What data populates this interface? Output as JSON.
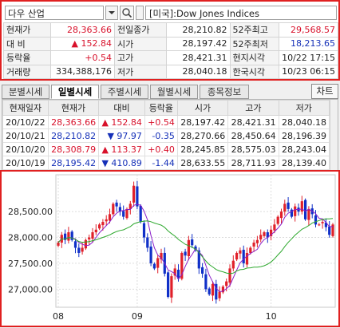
{
  "header": {
    "symbol_name": "다우 산업",
    "index_name": "[미국]:Dow Jones Indices"
  },
  "quote": {
    "rows": [
      [
        {
          "t": "현재가",
          "c": "lbl"
        },
        {
          "t": "28,363.66",
          "c": "num red"
        },
        {
          "t": "전일종가",
          "c": "lbl"
        },
        {
          "t": "28,210.82",
          "c": "num"
        },
        {
          "t": "52주최고",
          "c": "lbl"
        },
        {
          "t": "29,568.57",
          "c": "num red"
        }
      ],
      [
        {
          "t": "대 비",
          "c": "lbl"
        },
        {
          "t": "▲ 152.84",
          "c": "num red"
        },
        {
          "t": "시가",
          "c": "lbl"
        },
        {
          "t": "28,197.42",
          "c": "num"
        },
        {
          "t": "52주최저",
          "c": "lbl"
        },
        {
          "t": "18,213.65",
          "c": "num blue"
        }
      ],
      [
        {
          "t": "등락율",
          "c": "lbl"
        },
        {
          "t": "+0.54",
          "c": "num red"
        },
        {
          "t": "고가",
          "c": "lbl"
        },
        {
          "t": "28,421.31",
          "c": "num"
        },
        {
          "t": "현지시각",
          "c": "lbl"
        },
        {
          "t": "10/22 17:15",
          "c": "num"
        }
      ],
      [
        {
          "t": "거래량",
          "c": "lbl"
        },
        {
          "t": "334,388,176",
          "c": "num"
        },
        {
          "t": "저가",
          "c": "lbl"
        },
        {
          "t": "28,040.18",
          "c": "num"
        },
        {
          "t": "한국시각",
          "c": "lbl"
        },
        {
          "t": "10/23 06:15",
          "c": "num"
        }
      ]
    ]
  },
  "tabs": [
    "분별시세",
    "일별시세",
    "주별시세",
    "월별시세",
    "종목정보"
  ],
  "chart_button": "차트",
  "daily": {
    "headers": [
      "현재일자",
      "현재가",
      "대비",
      "등락율",
      "시가",
      "고가",
      "저가"
    ],
    "rows": [
      {
        "date": "20/10/22",
        "price": "28,363.66",
        "change": "▲ 152.84",
        "rate": "+0.54",
        "open": "28,197.42",
        "high": "28,421.31",
        "low": "28,040.18",
        "dir": "up"
      },
      {
        "date": "20/10/21",
        "price": "28,210.82",
        "change": "▼ 97.97",
        "rate": "-0.35",
        "open": "28,270.66",
        "high": "28,450.64",
        "low": "28,196.39",
        "dir": "down"
      },
      {
        "date": "20/10/20",
        "price": "28,308.79",
        "change": "▲ 113.37",
        "rate": "+0.40",
        "open": "28,245.85",
        "high": "28,575.03",
        "low": "28,243.04",
        "dir": "up"
      },
      {
        "date": "20/10/19",
        "price": "28,195.42",
        "change": "▼ 410.89",
        "rate": "-1.44",
        "open": "28,633.55",
        "high": "28,711.93",
        "low": "28,139.40",
        "dir": "down"
      }
    ]
  },
  "chart_data": {
    "type": "candlestick",
    "y_ticks": [
      "28,500.00",
      "28,000.00",
      "27,500.00",
      "27,000.00"
    ],
    "y_tick_values": [
      28500,
      28000,
      27500,
      27000
    ],
    "ylim": [
      26650,
      29150
    ],
    "x_ticks": [
      {
        "label": "08",
        "index": 0
      },
      {
        "label": "09",
        "index": 23
      },
      {
        "label": "10",
        "index": 62
      }
    ],
    "closes": [
      27900,
      28050,
      27950,
      28100,
      27950,
      27800,
      27700,
      27800,
      27950,
      28000,
      28100,
      28150,
      28250,
      28300,
      28350,
      28450,
      28650,
      28600,
      28500,
      28400,
      28550,
      28650,
      29000,
      28600,
      28300,
      28000,
      27800,
      27500,
      27400,
      27600,
      27700,
      27300,
      26850,
      27250,
      27400,
      27200,
      27700,
      27650,
      27950,
      27850,
      27750,
      27400,
      27300,
      27000,
      26900,
      27100,
      26800,
      26950,
      27050,
      27150,
      27400,
      27550,
      27700,
      27750,
      27500,
      27700,
      27800,
      27900,
      27950,
      28050,
      28100,
      28000,
      28150,
      28250,
      28400,
      28500,
      28650,
      28550,
      28400,
      28600,
      28500,
      28700,
      28350,
      28550,
      28450,
      28250,
      28250,
      28300,
      28200,
      28050,
      28250
    ],
    "ma_short_color": "#8a1ec9",
    "ma_long_color": "#2da82d",
    "up_color": "#e0202a",
    "down_color": "#1030c8"
  }
}
